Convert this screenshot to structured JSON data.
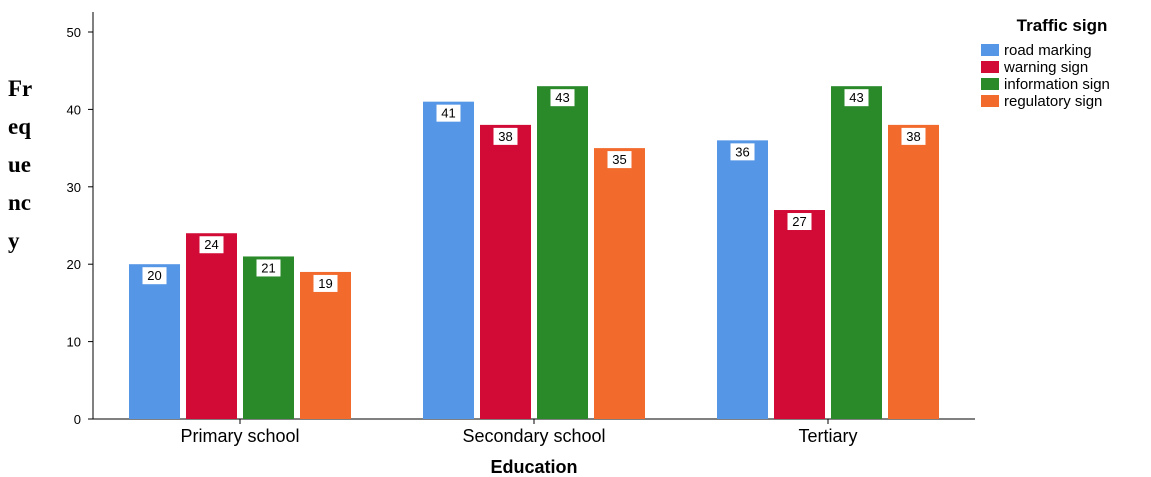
{
  "chart_data": {
    "type": "bar",
    "title": "",
    "xlabel": "Education",
    "ylabel": "Frequency",
    "ylabel_lines": [
      "Fr",
      "eq",
      "ue",
      "nc",
      "y"
    ],
    "categories": [
      "Primary school",
      "Secondary school",
      "Tertiary"
    ],
    "yticks": [
      "0",
      "10",
      "20",
      "30",
      "40",
      "50"
    ],
    "ylim": [
      0,
      50
    ],
    "grid": false,
    "legend": {
      "title": "Traffic sign",
      "placement": "top-right"
    },
    "series": [
      {
        "name": "road marking",
        "color": "#5596e6",
        "values": [
          20,
          41,
          36
        ]
      },
      {
        "name": "warning sign",
        "color": "#d10a36",
        "values": [
          24,
          38,
          27
        ]
      },
      {
        "name": "information sign",
        "color": "#2a8a2a",
        "values": [
          21,
          43,
          43
        ]
      },
      {
        "name": "regulatory sign",
        "color": "#f26b2d",
        "values": [
          19,
          35,
          38
        ]
      }
    ],
    "data_labels": [
      [
        "20",
        "41",
        "36"
      ],
      [
        "24",
        "38",
        "27"
      ],
      [
        "21",
        "43",
        "43"
      ],
      [
        "19",
        "35",
        "38"
      ]
    ]
  }
}
